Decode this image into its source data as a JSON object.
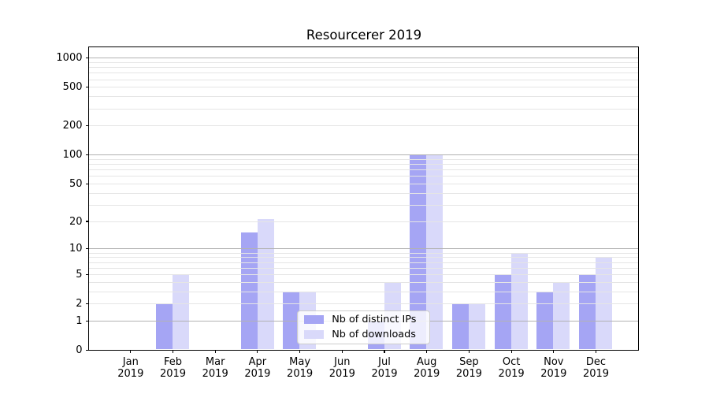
{
  "chart_data": {
    "type": "bar",
    "title": "Resourcerer 2019",
    "categories": [
      "Jan",
      "Feb",
      "Mar",
      "Apr",
      "May",
      "Jun",
      "Jul",
      "Aug",
      "Sep",
      "Oct",
      "Nov",
      "Dec"
    ],
    "x_year_suffix": "2019",
    "series": [
      {
        "name": "Nb of distinct IPs",
        "color": "#a5a5f4",
        "values": [
          0,
          2,
          0,
          15,
          3,
          0,
          1,
          100,
          2,
          5,
          3,
          5
        ]
      },
      {
        "name": "Nb of downloads",
        "color": "#d9d9fa",
        "values": [
          0,
          5,
          0,
          21,
          3,
          0,
          4,
          100,
          2,
          9,
          4,
          8
        ]
      }
    ],
    "xlabel": "",
    "ylabel": "",
    "yscale": "log1p",
    "ylim": [
      0,
      1300
    ],
    "yticks": [
      0,
      1,
      2,
      5,
      10,
      20,
      50,
      100,
      200,
      500,
      1000
    ],
    "major_gridlines": [
      1,
      10,
      100,
      1000
    ],
    "minor_gridlines": [
      2,
      3,
      4,
      5,
      6,
      7,
      8,
      9,
      20,
      30,
      40,
      50,
      60,
      70,
      80,
      90,
      200,
      300,
      400,
      500,
      600,
      700,
      800,
      900
    ],
    "grid": true,
    "legend_position": "lower center"
  },
  "colors": {
    "background": "#ffffff",
    "spine": "#000000",
    "major_grid": "#b2b2b2",
    "minor_grid": "#e5e5e5",
    "legend_border": "#cccccc",
    "text": "#000000"
  }
}
